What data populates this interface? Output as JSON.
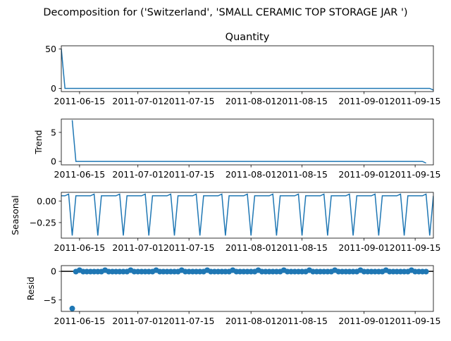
{
  "figure_title": "Decomposition for ('Switzerland', 'SMALL CERAMIC TOP STORAGE JAR ')",
  "chart_data": [
    {
      "type": "line",
      "panel": "observed",
      "title": "Quantity",
      "ylabel": "",
      "ylim": [
        -4,
        54
      ],
      "yticks": [
        0,
        50
      ],
      "x_start": "2011-06-10",
      "x_end": "2011-09-20",
      "xticks": [
        "2011-06-15",
        "2011-07-01",
        "2011-07-15",
        "2011-08-01",
        "2011-08-15",
        "2011-09-01",
        "2011-09-15"
      ],
      "series": [
        {
          "points": [
            [
              "2011-06-10",
              50
            ],
            [
              "2011-06-11",
              0
            ],
            [
              "2011-09-19",
              0
            ],
            [
              "2011-09-20",
              -2
            ]
          ],
          "color": "#1f77b4"
        }
      ]
    },
    {
      "type": "line",
      "panel": "trend",
      "title": "",
      "ylabel": "Trend",
      "ylim": [
        -0.6,
        7.3
      ],
      "yticks": [
        0,
        5
      ],
      "x_start": "2011-06-10",
      "x_end": "2011-09-20",
      "xticks": [
        "2011-06-15",
        "2011-07-01",
        "2011-07-15",
        "2011-08-01",
        "2011-08-15",
        "2011-09-01",
        "2011-09-15"
      ],
      "series": [
        {
          "points": [
            [
              "2011-06-13",
              7.1
            ],
            [
              "2011-06-14",
              0
            ],
            [
              "2011-09-17",
              0
            ],
            [
              "2011-09-18",
              -0.3
            ]
          ],
          "color": "#1f77b4"
        }
      ]
    },
    {
      "type": "line",
      "panel": "seasonal",
      "title": "",
      "ylabel": "Seasonal",
      "ylim": [
        -0.43,
        0.1
      ],
      "yticks": [
        0.0,
        -0.25
      ],
      "ytick_labels": [
        "0.00",
        "−0.25"
      ],
      "x_start": "2011-06-10",
      "x_end": "2011-09-20",
      "xticks": [
        "2011-06-15",
        "2011-07-01",
        "2011-07-15",
        "2011-08-01",
        "2011-08-15",
        "2011-09-01",
        "2011-09-15"
      ],
      "pattern": [
        0.06,
        0.06,
        0.08,
        -0.4,
        0.06,
        0.06,
        0.06
      ],
      "series": [
        {
          "color": "#1f77b4"
        }
      ]
    },
    {
      "type": "scatter",
      "panel": "resid",
      "title": "",
      "ylabel": "Resid",
      "ylim": [
        -7,
        1
      ],
      "yticks": [
        0,
        -5
      ],
      "ytick_labels": [
        "0",
        "−5"
      ],
      "x_start": "2011-06-10",
      "x_end": "2011-09-20",
      "xticks": [
        "2011-06-15",
        "2011-07-01",
        "2011-07-15",
        "2011-08-01",
        "2011-08-15",
        "2011-09-01",
        "2011-09-15"
      ],
      "baseline": 0,
      "points": [
        [
          "2011-06-13",
          -6.5
        ]
      ],
      "regular": {
        "start": "2011-06-14",
        "end": "2011-09-18",
        "value": -0.05,
        "peak_value": 0.2,
        "peak_offset": 1
      },
      "series": [
        {
          "color": "#1f77b4"
        }
      ]
    }
  ]
}
